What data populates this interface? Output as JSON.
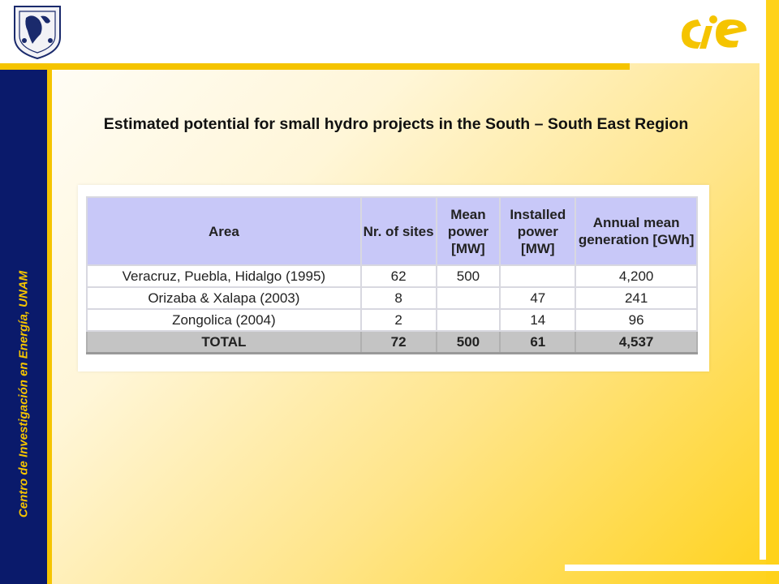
{
  "sidebar": {
    "text": "Centro de Investigación en Energía, UNAM"
  },
  "title": "Estimated potential for small hydro projects in the South – South East Region",
  "table": {
    "headers": [
      "Area",
      "Nr. of sites",
      "Mean power [MW]",
      "Installed power [MW]",
      "Annual mean generation [GWh]"
    ],
    "rows": [
      [
        "Veracruz, Puebla, Hidalgo (1995)",
        "62",
        "500",
        "",
        "4,200"
      ],
      [
        "Orizaba & Xalapa (2003)",
        "8",
        "",
        "47",
        "241"
      ],
      [
        "Zongolica (2004)",
        "2",
        "",
        "14",
        "96"
      ]
    ],
    "total": [
      "TOTAL",
      "72",
      "500",
      "61",
      "4,537"
    ]
  },
  "colors": {
    "accent": "#f5c400",
    "sidebar": "#0a1a6b",
    "header_fill": "#c8c8f8"
  },
  "logos": {
    "left": "unam-seal",
    "right": "cie-logo"
  }
}
